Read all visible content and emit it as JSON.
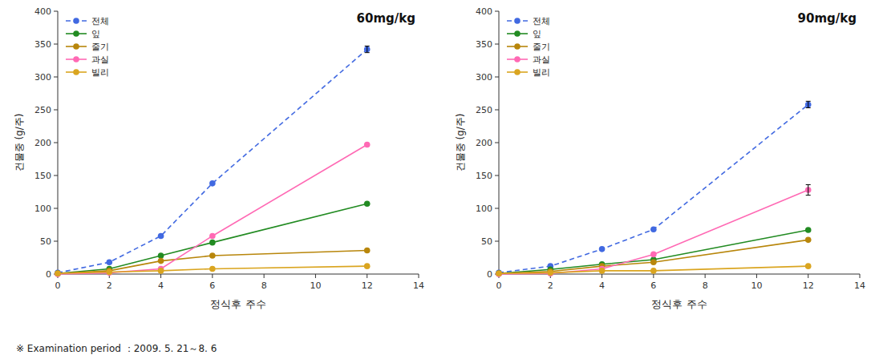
{
  "chart_data": [
    {
      "type": "line",
      "annotations": [
        "60mg/kg",
        "※  Examination period ：2009. 5. 21～8. 6"
      ],
      "x": [
        0,
        2,
        4,
        6,
        12
      ],
      "xlabel": "정식후 주수",
      "ylabel": "건물중 (g/주)",
      "xlim": [
        0,
        14
      ],
      "ylim": [
        0,
        400
      ],
      "xticks": [
        0,
        2,
        4,
        6,
        8,
        10,
        12,
        14
      ],
      "yticks": [
        0,
        50,
        100,
        150,
        200,
        250,
        300,
        350,
        400
      ],
      "grid": false,
      "legend": "upper left",
      "marker": "circle",
      "series": [
        {
          "name": "전체",
          "color": "#4169E1",
          "line_style": "dashed",
          "values": [
            2,
            18,
            58,
            138,
            342
          ],
          "errors": [
            0,
            0,
            0,
            0,
            5
          ]
        },
        {
          "name": "잎",
          "color": "#228B22",
          "line_style": "solid",
          "values": [
            1,
            8,
            28,
            48,
            107
          ],
          "errors": [
            0,
            0,
            0,
            0,
            0
          ]
        },
        {
          "name": "줄기",
          "color": "#B8860B",
          "line_style": "solid",
          "values": [
            1,
            5,
            20,
            28,
            36
          ],
          "errors": [
            0,
            0,
            0,
            0,
            0
          ]
        },
        {
          "name": "과실",
          "color": "#FF69B4",
          "line_style": "solid",
          "values": [
            0,
            2,
            8,
            58,
            197
          ],
          "errors": [
            0,
            0,
            0,
            0,
            0
          ]
        },
        {
          "name": "빌리",
          "color": "#DAA520",
          "line_style": "solid",
          "values": [
            1,
            3,
            5,
            8,
            12
          ],
          "errors": [
            0,
            0,
            0,
            0,
            0
          ]
        }
      ]
    },
    {
      "type": "line",
      "annotations": [
        "90mg/kg"
      ],
      "x": [
        0,
        2,
        4,
        6,
        12
      ],
      "xlabel": "정식후 주수",
      "ylabel": "건물중 (g/주)",
      "xlim": [
        0,
        14
      ],
      "ylim": [
        0,
        400
      ],
      "xticks": [
        0,
        2,
        4,
        6,
        8,
        10,
        12,
        14
      ],
      "yticks": [
        0,
        50,
        100,
        150,
        200,
        250,
        300,
        350,
        400
      ],
      "grid": false,
      "legend": "upper left",
      "marker": "circle",
      "series": [
        {
          "name": "전체",
          "color": "#4169E1",
          "line_style": "dashed",
          "values": [
            2,
            12,
            38,
            68,
            258
          ],
          "errors": [
            0,
            0,
            0,
            0,
            5
          ]
        },
        {
          "name": "잎",
          "color": "#228B22",
          "line_style": "solid",
          "values": [
            1,
            7,
            15,
            22,
            67
          ],
          "errors": [
            0,
            0,
            0,
            0,
            0
          ]
        },
        {
          "name": "줄기",
          "color": "#B8860B",
          "line_style": "solid",
          "values": [
            1,
            4,
            12,
            18,
            52
          ],
          "errors": [
            0,
            0,
            0,
            0,
            0
          ]
        },
        {
          "name": "과실",
          "color": "#FF69B4",
          "line_style": "solid",
          "values": [
            0,
            1,
            8,
            30,
            128
          ],
          "errors": [
            0,
            0,
            0,
            0,
            8
          ]
        },
        {
          "name": "빌리",
          "color": "#DAA520",
          "line_style": "solid",
          "values": [
            1,
            2,
            5,
            5,
            12
          ],
          "errors": [
            0,
            0,
            0,
            0,
            0
          ]
        }
      ]
    }
  ]
}
